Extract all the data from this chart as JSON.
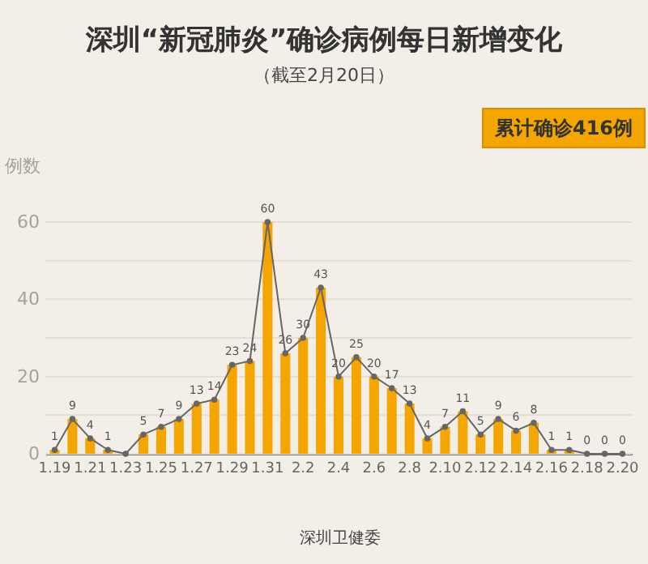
{
  "chart_data": {
    "type": "bar",
    "title": "深圳“新冠肺炎”确诊病例每日新增变化",
    "subtitle": "（截至2月20日）",
    "ylabel": "例数",
    "annotations": [
      "累计确诊416例",
      "深圳卫健委"
    ],
    "categories": [
      "1.19",
      null,
      "1.21",
      null,
      "1.23",
      null,
      "1.25",
      null,
      "1.27",
      null,
      "1.29",
      null,
      "1.31",
      null,
      "2.2",
      null,
      "2.4",
      null,
      "2.6",
      null,
      "2.8",
      null,
      "2.10",
      null,
      "2.12",
      null,
      "2.14",
      null,
      "2.16",
      null,
      "2.18",
      null,
      "2.20"
    ],
    "series": [
      {
        "color": "#f5a500",
        "values": [
          1,
          9,
          4,
          1,
          0,
          5,
          7,
          9,
          13,
          14,
          23,
          24,
          60,
          26,
          30,
          43,
          20,
          25,
          20,
          17,
          13,
          4,
          7,
          11,
          5,
          9,
          6,
          8,
          1,
          1,
          0,
          0,
          0
        ],
        "value_labels": [
          "1",
          "9",
          "4",
          "1",
          null,
          "5",
          "7",
          "9",
          "13",
          "14",
          "23",
          "24",
          "60",
          "26",
          "30",
          "43",
          "20",
          "25",
          "20",
          "17",
          "13",
          "4",
          "7",
          "11",
          "5",
          "9",
          "6",
          "8",
          "1",
          "1",
          "0",
          "0",
          "0"
        ]
      },
      {
        "type": "line",
        "color": "#666666",
        "marker": "circle",
        "values": [
          1,
          9,
          4,
          1,
          0,
          5,
          7,
          9,
          13,
          14,
          23,
          24,
          60,
          26,
          30,
          43,
          20,
          25,
          20,
          17,
          13,
          4,
          7,
          11,
          5,
          9,
          6,
          8,
          1,
          1,
          0,
          0,
          0
        ]
      }
    ],
    "ylim": [
      0,
      60
    ],
    "yticks": [
      0,
      {
        "value": 10,
        "label": null
      },
      20,
      {
        "value": 30,
        "label": null
      },
      40,
      {
        "value": 50,
        "label": null
      },
      60
    ],
    "grid": "y"
  }
}
